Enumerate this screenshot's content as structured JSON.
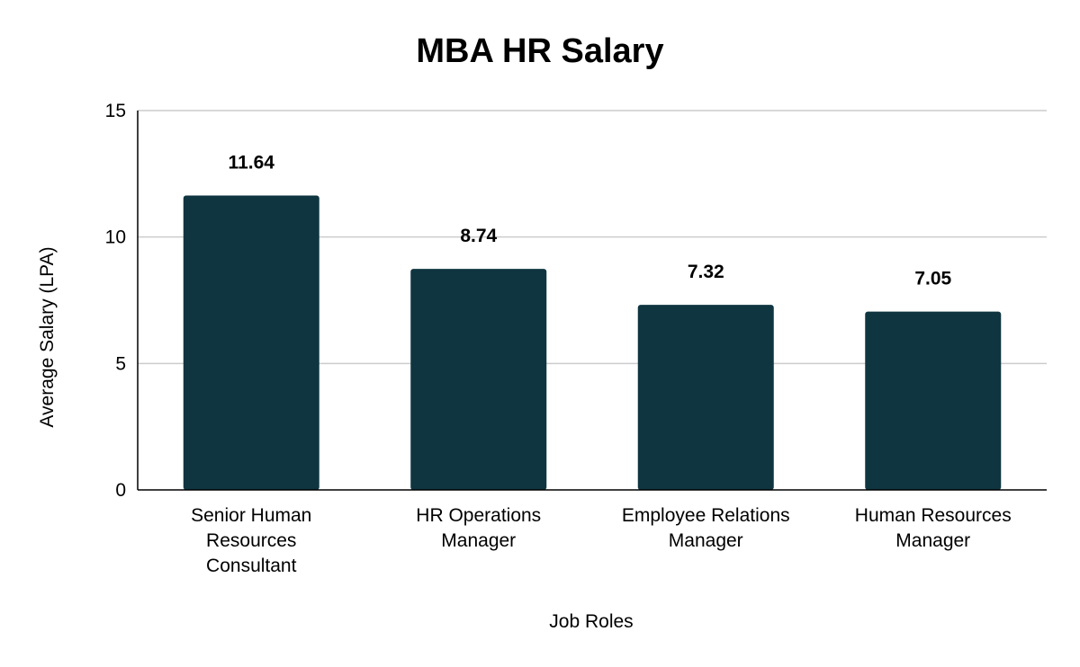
{
  "chart_data": {
    "type": "bar",
    "title": "MBA HR Salary",
    "xlabel": "Job Roles",
    "ylabel": "Average Salary (LPA)",
    "ylim": [
      0,
      15
    ],
    "yticks": [
      0,
      5,
      10,
      15
    ],
    "grid": true,
    "legend": "none",
    "categories": [
      [
        "Senior Human",
        "Resources",
        "Consultant"
      ],
      [
        "HR Operations",
        "Manager"
      ],
      [
        "Employee Relations",
        "Manager"
      ],
      [
        "Human Resources",
        "Manager"
      ]
    ],
    "values": [
      11.64,
      8.74,
      7.32,
      7.05
    ],
    "value_labels": [
      "11.64",
      "8.74",
      "7.32",
      "7.05"
    ],
    "bar_color": "#0f3640",
    "grid_color": "#cccccc",
    "axis_color": "#000000"
  }
}
